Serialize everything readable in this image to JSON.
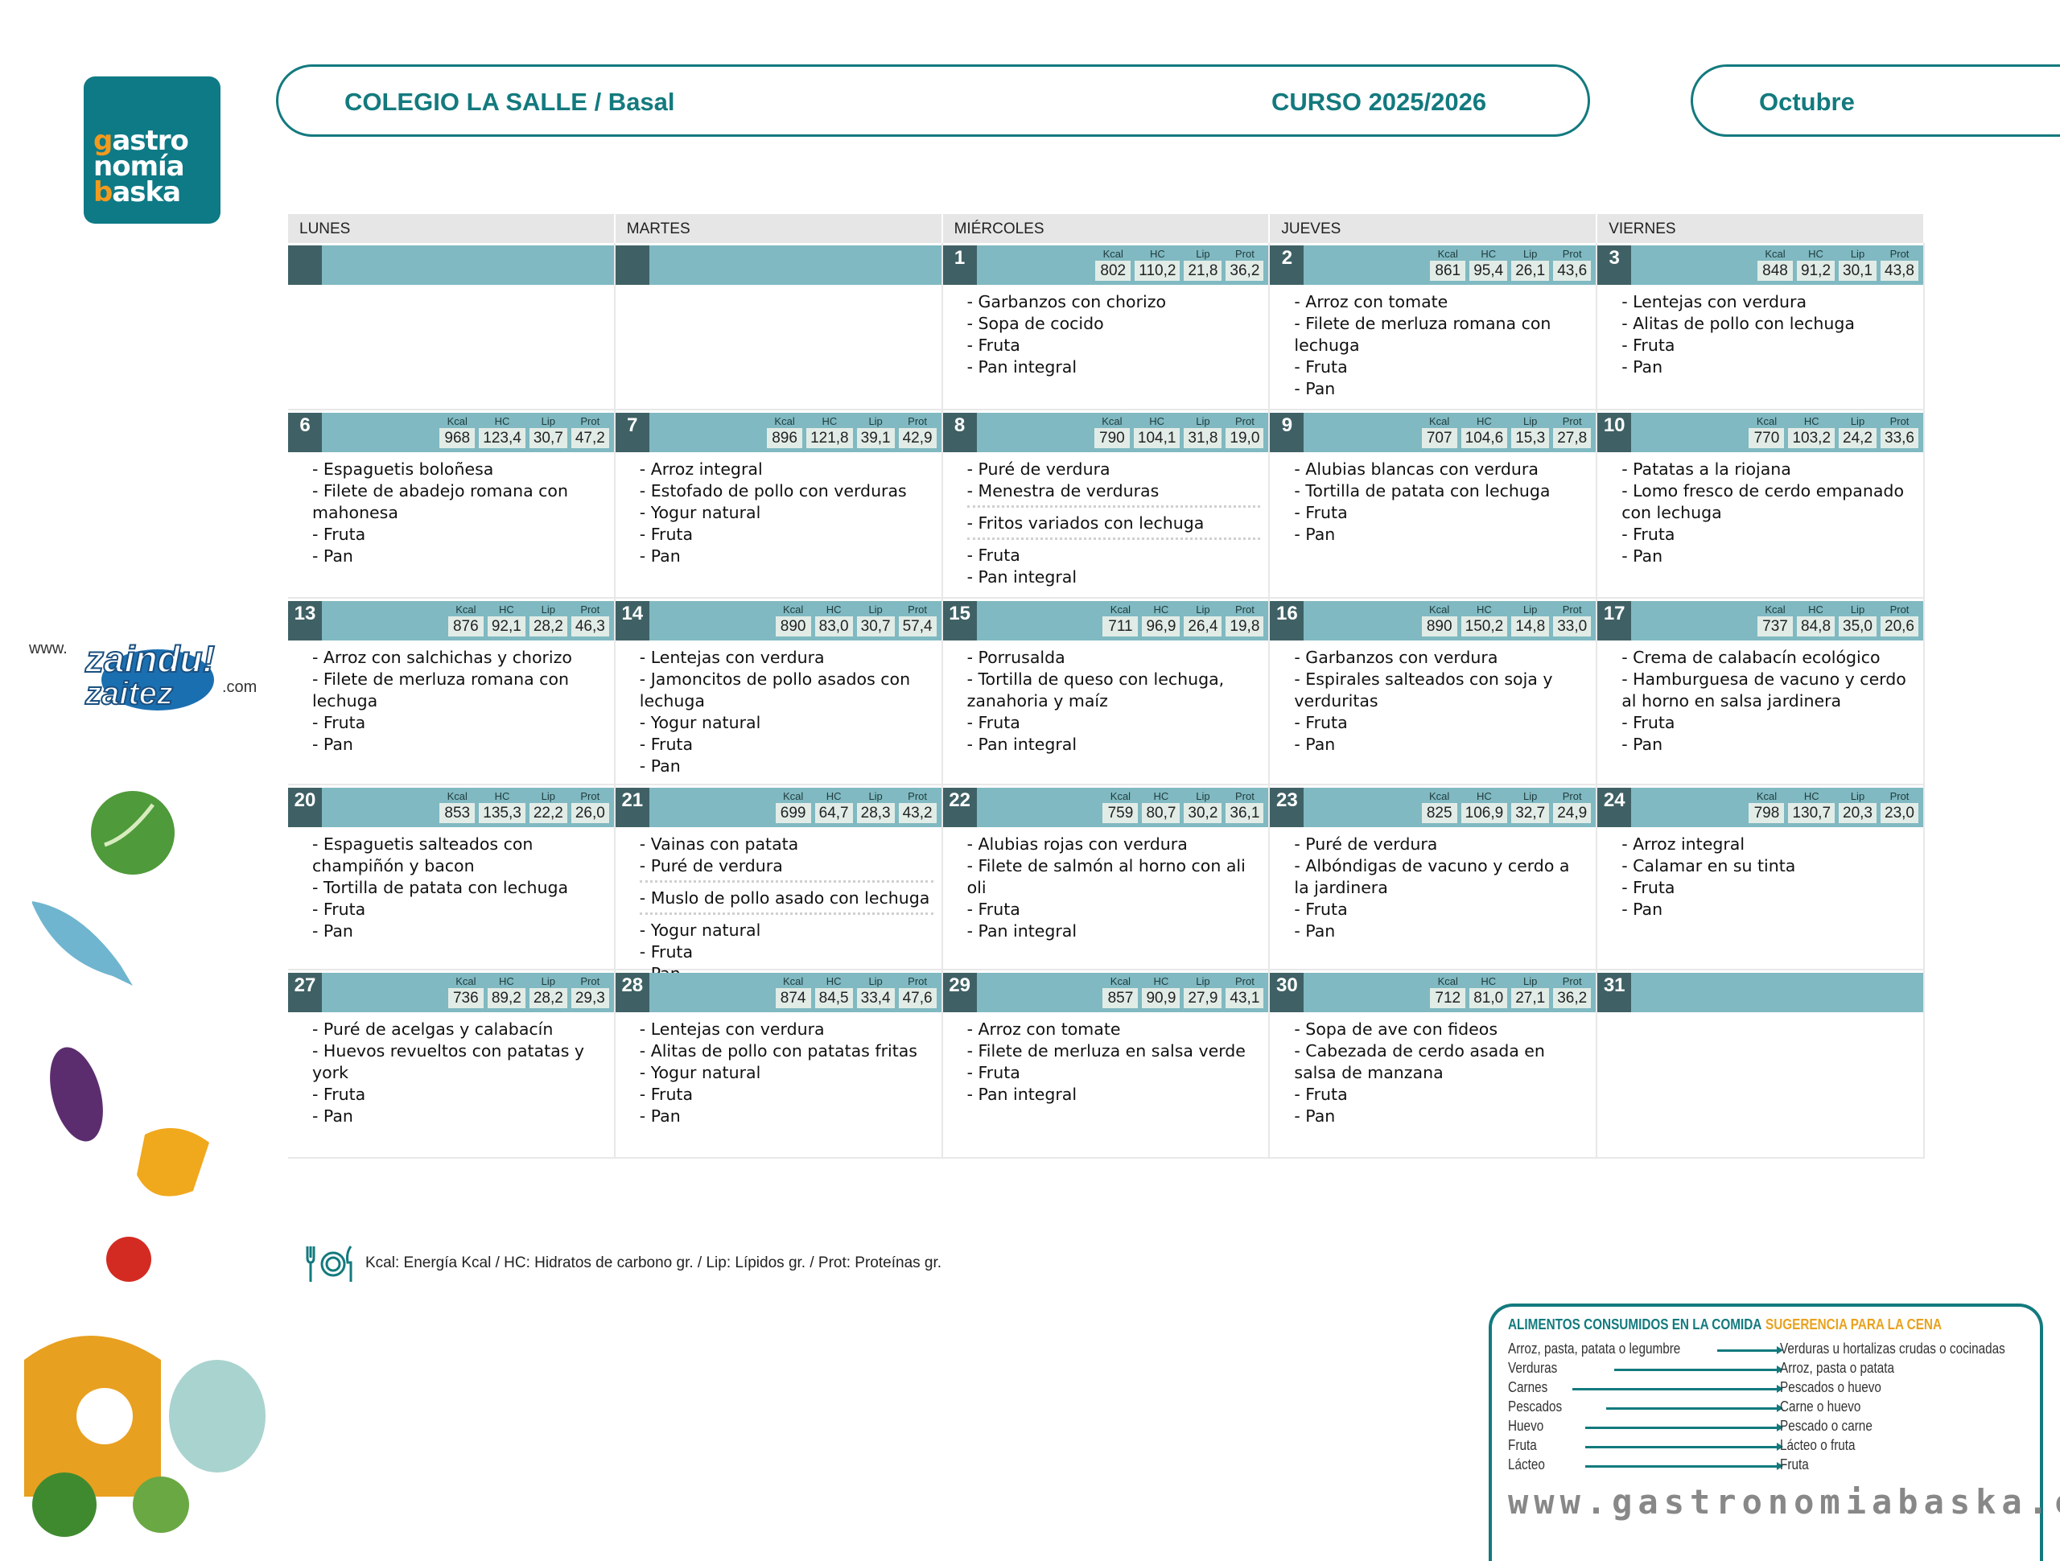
{
  "logo": {
    "lines": [
      "gastro",
      "nomía",
      "baska"
    ]
  },
  "header": {
    "school": "COLEGIO LA SALLE / Basal",
    "course": "CURSO 2025/2026",
    "month": "Octubre"
  },
  "colors": {
    "teal": "#137a7e",
    "band": "#80b9c1",
    "day_box": "#3f6165",
    "accent_orange": "#e8a21e"
  },
  "weekdays": [
    "LUNES",
    "MARTES",
    "MIÉRCOLES",
    "JUEVES",
    "VIERNES"
  ],
  "nutrient_labels": [
    "Kcal",
    "HC",
    "Lip",
    "Prot"
  ],
  "weeks": [
    [
      {
        "day": "",
        "values": null,
        "menu": []
      },
      {
        "day": "",
        "values": null,
        "menu": []
      },
      {
        "day": "1",
        "values": [
          "802",
          "110,2",
          "21,8",
          "36,2"
        ],
        "menu": [
          [
            "- Garbanzos con chorizo",
            "- Sopa de cocido",
            "- Fruta",
            "- Pan integral"
          ]
        ]
      },
      {
        "day": "2",
        "values": [
          "861",
          "95,4",
          "26,1",
          "43,6"
        ],
        "menu": [
          [
            "- Arroz con tomate",
            "- Filete de merluza romana con lechuga",
            "- Fruta",
            "- Pan"
          ]
        ]
      },
      {
        "day": "3",
        "values": [
          "848",
          "91,2",
          "30,1",
          "43,8"
        ],
        "menu": [
          [
            "- Lentejas con verdura",
            "- Alitas de pollo con lechuga",
            "- Fruta",
            "- Pan"
          ]
        ]
      }
    ],
    [
      {
        "day": "6",
        "values": [
          "968",
          "123,4",
          "30,7",
          "47,2"
        ],
        "menu": [
          [
            "- Espaguetis boloñesa",
            "- Filete de abadejo romana con mahonesa",
            "- Fruta",
            "- Pan"
          ]
        ]
      },
      {
        "day": "7",
        "values": [
          "896",
          "121,8",
          "39,1",
          "42,9"
        ],
        "menu": [
          [
            "- Arroz integral",
            "- Estofado de pollo con verduras",
            "- Yogur natural",
            "- Fruta",
            "- Pan"
          ]
        ]
      },
      {
        "day": "8",
        "values": [
          "790",
          "104,1",
          "31,8",
          "19,0"
        ],
        "menu": [
          [
            "- Puré de verdura",
            "- Menestra de verduras"
          ],
          [
            "- Fritos variados con lechuga"
          ],
          [
            "- Fruta",
            "- Pan integral"
          ]
        ]
      },
      {
        "day": "9",
        "values": [
          "707",
          "104,6",
          "15,3",
          "27,8"
        ],
        "menu": [
          [
            "- Alubias blancas con verdura",
            "- Tortilla de patata con lechuga",
            "- Fruta",
            "- Pan"
          ]
        ]
      },
      {
        "day": "10",
        "values": [
          "770",
          "103,2",
          "24,2",
          "33,6"
        ],
        "menu": [
          [
            "- Patatas a la riojana",
            "- Lomo fresco de cerdo empanado con lechuga",
            "- Fruta",
            "- Pan"
          ]
        ]
      }
    ],
    [
      {
        "day": "13",
        "values": [
          "876",
          "92,1",
          "28,2",
          "46,3"
        ],
        "menu": [
          [
            "- Arroz con salchichas y chorizo",
            "- Filete de merluza romana con lechuga",
            "- Fruta",
            "- Pan"
          ]
        ]
      },
      {
        "day": "14",
        "values": [
          "890",
          "83,0",
          "30,7",
          "57,4"
        ],
        "menu": [
          [
            "- Lentejas con verdura",
            "- Jamoncitos de pollo asados con lechuga",
            "- Yogur natural",
            "- Fruta",
            "- Pan"
          ]
        ]
      },
      {
        "day": "15",
        "values": [
          "711",
          "96,9",
          "26,4",
          "19,8"
        ],
        "menu": [
          [
            "- Porrusalda",
            "- Tortilla de queso con lechuga, zanahoria y maíz",
            "- Fruta",
            "- Pan integral"
          ]
        ]
      },
      {
        "day": "16",
        "values": [
          "890",
          "150,2",
          "14,8",
          "33,0"
        ],
        "menu": [
          [
            "- Garbanzos con verdura",
            "- Espirales salteados con soja y verduritas",
            "- Fruta",
            "- Pan"
          ]
        ]
      },
      {
        "day": "17",
        "values": [
          "737",
          "84,8",
          "35,0",
          "20,6"
        ],
        "menu": [
          [
            "- Crema de calabacín ecológico",
            "- Hamburguesa de vacuno y cerdo al horno en salsa jardinera",
            "- Fruta",
            "- Pan"
          ]
        ]
      }
    ],
    [
      {
        "day": "20",
        "values": [
          "853",
          "135,3",
          "22,2",
          "26,0"
        ],
        "menu": [
          [
            "- Espaguetis salteados con champiñón y bacon",
            "- Tortilla de patata con lechuga",
            "- Fruta",
            "- Pan"
          ]
        ]
      },
      {
        "day": "21",
        "values": [
          "699",
          "64,7",
          "28,3",
          "43,2"
        ],
        "menu": [
          [
            "- Vainas con patata",
            "- Puré de verdura"
          ],
          [
            "- Muslo de pollo asado con lechuga"
          ],
          [
            "- Yogur natural",
            "- Fruta",
            "- Pan"
          ]
        ]
      },
      {
        "day": "22",
        "values": [
          "759",
          "80,7",
          "30,2",
          "36,1"
        ],
        "menu": [
          [
            "- Alubias rojas con verdura",
            "- Filete de salmón al horno con ali oli",
            "- Fruta",
            "- Pan integral"
          ]
        ]
      },
      {
        "day": "23",
        "values": [
          "825",
          "106,9",
          "32,7",
          "24,9"
        ],
        "menu": [
          [
            "- Puré de verdura",
            "- Albóndigas de vacuno y cerdo a la jardinera",
            "- Fruta",
            "- Pan"
          ]
        ]
      },
      {
        "day": "24",
        "values": [
          "798",
          "130,7",
          "20,3",
          "23,0"
        ],
        "menu": [
          [
            "- Arroz integral",
            "- Calamar en su tinta",
            "- Fruta",
            "- Pan"
          ]
        ]
      }
    ],
    [
      {
        "day": "27",
        "values": [
          "736",
          "89,2",
          "28,2",
          "29,3"
        ],
        "menu": [
          [
            "- Puré de acelgas y calabacín",
            "- Huevos revueltos con patatas y york",
            "- Fruta",
            "- Pan"
          ]
        ]
      },
      {
        "day": "28",
        "values": [
          "874",
          "84,5",
          "33,4",
          "47,6"
        ],
        "menu": [
          [
            "- Lentejas con verdura",
            "- Alitas de pollo con patatas fritas",
            "- Yogur natural",
            "- Fruta",
            "- Pan"
          ]
        ]
      },
      {
        "day": "29",
        "values": [
          "857",
          "90,9",
          "27,9",
          "43,1"
        ],
        "menu": [
          [
            "- Arroz con tomate",
            "- Filete de merluza en salsa verde",
            "- Fruta",
            "- Pan integral"
          ]
        ]
      },
      {
        "day": "30",
        "values": [
          "712",
          "81,0",
          "27,1",
          "36,2"
        ],
        "menu": [
          [
            "- Sopa de ave con fideos",
            "- Cabezada de cerdo asada en salsa de manzana",
            "- Fruta",
            "- Pan"
          ]
        ]
      },
      {
        "day": "31",
        "values": null,
        "menu": []
      }
    ]
  ],
  "legend": {
    "icon": "cutlery-plate-icon",
    "text": "Kcal: Energía Kcal / HC: Hidratos de carbono gr. / Lip: Lípidos gr. / Prot: Proteínas gr."
  },
  "suggestions": {
    "left_title": "ALIMENTOS CONSUMIDOS EN LA COMIDA",
    "right_title": "SUGERENCIA PARA LA CENA",
    "rows": [
      {
        "lunch": "Arroz, pasta, patata o legumbre",
        "dinner": "Verduras u hortalizas crudas o cocinadas"
      },
      {
        "lunch": "Verduras",
        "dinner": "Arroz, pasta o patata"
      },
      {
        "lunch": "Carnes",
        "dinner": "Pescados o huevo"
      },
      {
        "lunch": "Pescados",
        "dinner": "Carne o huevo"
      },
      {
        "lunch": "Huevo",
        "dinner": "Pescado o carne"
      },
      {
        "lunch": "Fruta",
        "dinner": "Lácteo o fruta"
      },
      {
        "lunch": "Lácteo",
        "dinner": "Fruta"
      }
    ],
    "url": "www.gastronomiabaska.com"
  },
  "zaindu": {
    "text": "www.zaindu zaitez!.com"
  }
}
